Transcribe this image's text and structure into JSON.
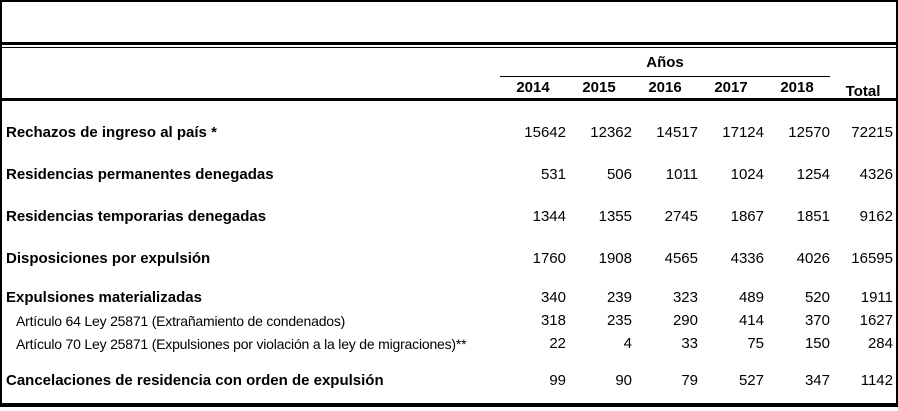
{
  "colors": {
    "background": "#ffffff",
    "border": "#000000",
    "text": "#000000"
  },
  "table": {
    "header": {
      "group_label": "Años",
      "years": [
        "2014",
        "2015",
        "2016",
        "2017",
        "2018"
      ],
      "total_label": "Total"
    },
    "rows": [
      {
        "label": "Rechazos de ingreso al país *",
        "values": [
          "15642",
          "12362",
          "14517",
          "17124",
          "12570",
          "72215"
        ]
      },
      {
        "label": "Residencias permanentes denegadas",
        "values": [
          "531",
          "506",
          "1011",
          "1024",
          "1254",
          "4326"
        ]
      },
      {
        "label": "Residencias temporarias denegadas",
        "values": [
          "1344",
          "1355",
          "2745",
          "1867",
          "1851",
          "9162"
        ]
      },
      {
        "label": "Disposiciones por expulsión",
        "values": [
          "1760",
          "1908",
          "4565",
          "4336",
          "4026",
          "16595"
        ]
      },
      {
        "label": "Expulsiones materializadas",
        "values": [
          "340",
          "239",
          "323",
          "489",
          "520",
          "1911"
        ]
      },
      {
        "label": "Artículo 64 Ley 25871 (Extrañamiento de condenados)",
        "values": [
          "318",
          "235",
          "290",
          "414",
          "370",
          "1627"
        ]
      },
      {
        "label": "Artículo 70 Ley 25871 (Expulsiones por violación a la ley de migraciones)**",
        "values": [
          "22",
          "4",
          "33",
          "75",
          "150",
          "284"
        ]
      },
      {
        "label": "Cancelaciones de residencia con orden de expulsión",
        "values": [
          "99",
          "90",
          "79",
          "527",
          "347",
          "1142"
        ]
      }
    ]
  }
}
